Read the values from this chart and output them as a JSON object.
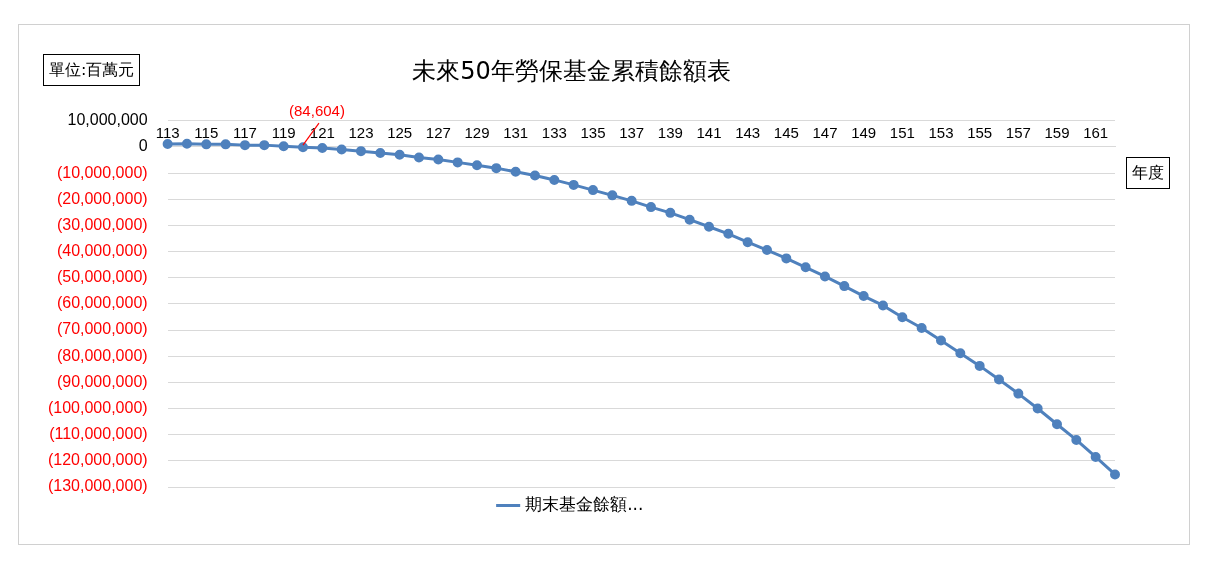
{
  "chart_data": {
    "type": "line",
    "title": "未來50年勞保基金累積餘額表",
    "xlabel": "年度",
    "ylabel": "單位:百萬元",
    "categories": [
      "113",
      null,
      "115",
      null,
      "117",
      null,
      "119",
      null,
      "121",
      null,
      "123",
      null,
      "125",
      null,
      "127",
      null,
      "129",
      null,
      "131",
      null,
      "133",
      null,
      "135",
      null,
      "137",
      null,
      "139",
      null,
      "141",
      null,
      "143",
      null,
      "145",
      null,
      "147",
      null,
      "149",
      null,
      "151",
      null,
      "153",
      null,
      "155",
      null,
      "157",
      null,
      "159",
      null,
      "161",
      null
    ],
    "series": [
      {
        "name": "期末基金餘額...",
        "color": "#4f81bd",
        "values": [
          1100000,
          1200000,
          1000000,
          1000000,
          700000,
          700000,
          300000,
          -84604,
          -400000,
          -1000000,
          -1600000,
          -2300000,
          -3000000,
          -4000000,
          -4800000,
          -5900000,
          -7000000,
          -8100000,
          -9500000,
          -10900000,
          -12600000,
          -14500000,
          -16500000,
          -18500000,
          -20600000,
          -23000000,
          -25200000,
          -27800000,
          -30500000,
          -33200000,
          -36400000,
          -39400000,
          -42600000,
          -46000000,
          -49500000,
          -53200000,
          -57000000,
          -60600000,
          -65100000,
          -69200000,
          -74000000,
          -78900000,
          -83700000,
          -88900000,
          -94300000,
          -100000000,
          -106000000,
          -112000000,
          -118500000,
          -125200000
        ],
        "value_labels": [
          null,
          null,
          null,
          null,
          null,
          null,
          null,
          "(84,604)",
          null,
          null,
          null,
          null,
          null,
          null,
          null,
          null,
          null,
          null,
          null,
          null,
          null,
          null,
          null,
          null,
          null,
          null,
          null,
          null,
          null,
          null,
          null,
          null,
          null,
          null,
          null,
          null,
          null,
          null,
          null,
          null,
          null,
          null,
          null,
          null,
          null,
          null,
          null,
          null,
          null,
          null
        ]
      }
    ],
    "ylim": [
      -130000000,
      10000000
    ],
    "yticks": [
      {
        "value": 10000000,
        "label": "10,000,000"
      },
      {
        "value": 0,
        "label": "0"
      },
      {
        "value": -10000000,
        "label": "(10,000,000)"
      },
      {
        "value": -20000000,
        "label": "(20,000,000)"
      },
      {
        "value": -30000000,
        "label": "(30,000,000)"
      },
      {
        "value": -40000000,
        "label": "(40,000,000)"
      },
      {
        "value": -50000000,
        "label": "(50,000,000)"
      },
      {
        "value": -60000000,
        "label": "(60,000,000)"
      },
      {
        "value": -70000000,
        "label": "(70,000,000)"
      },
      {
        "value": -80000000,
        "label": "(80,000,000)"
      },
      {
        "value": -90000000,
        "label": "(90,000,000)"
      },
      {
        "value": -100000000,
        "label": "(100,000,000)"
      },
      {
        "value": -110000000,
        "label": "(110,000,000)"
      },
      {
        "value": -120000000,
        "label": "(120,000,000)"
      },
      {
        "value": -130000000,
        "label": "(130,000,000)"
      }
    ],
    "grid": "y",
    "legend": "bottom",
    "marker": "circle",
    "line_style": "solid"
  }
}
